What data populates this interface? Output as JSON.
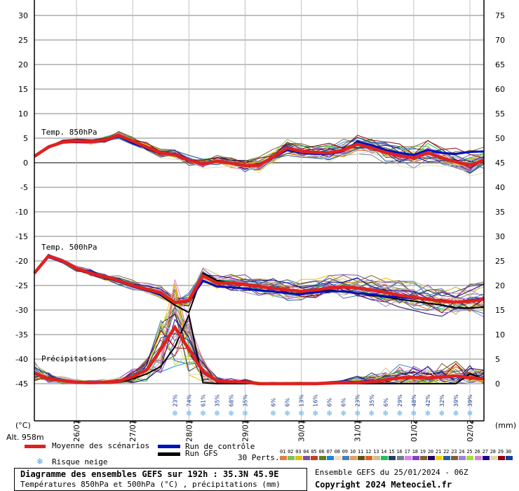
{
  "chart_data": {
    "type": "line",
    "title": "Diagramme des ensembles GEFS sur 192h : 35.3N 45.9E",
    "subtitle": "Températures 850hPa et 500hPa (°C) , précipitations (mm)",
    "run_info": "Ensemble GEFS du 25/01/2024 - 06Z",
    "copyright": "Copyright 2024 Meteociel.fr",
    "altitude": "Alt. 958m",
    "y_left_unit": "(°C)",
    "y_right_unit": "(mm)",
    "y_left_ticks": [
      30,
      25,
      20,
      15,
      10,
      5,
      0,
      -5,
      -10,
      -15,
      -20,
      -25,
      -30,
      -35,
      -40,
      -45
    ],
    "y_left_range": [
      -45,
      30
    ],
    "y_right_ticks": [
      75,
      70,
      65,
      60,
      55,
      50,
      45,
      40,
      35,
      30,
      25,
      20,
      15,
      10,
      5,
      0
    ],
    "y_right_range": [
      0,
      75
    ],
    "x_date_labels": [
      "26/01",
      "27/01",
      "28/01",
      "29/01",
      "30/01",
      "31/01",
      "01/02",
      "02/02"
    ],
    "x_step_hours": 6,
    "x_start": "25/01 06Z",
    "grid": true,
    "panel_labels": [
      "Temp. 850hPa",
      "Temp. 500hPa",
      "Précipitations"
    ],
    "t850_mean": [
      1.3,
      3.2,
      4.2,
      4.4,
      4.3,
      4.6,
      5.6,
      4.4,
      3.2,
      2.0,
      1.6,
      0.5,
      -0.3,
      0.3,
      -0.1,
      -0.6,
      -0.5,
      1.2,
      3.0,
      2.3,
      2.1,
      2.0,
      2.6,
      3.8,
      3.0,
      2.1,
      1.4,
      1.0,
      2.0,
      1.0,
      0.2,
      -0.5,
      0.5,
      1.8,
      0.5,
      -0.8,
      -1.5,
      -0.2,
      -1.0,
      -1.8,
      -2.2,
      -2.5,
      -2.2,
      -2.0,
      -2.3,
      -2.8,
      -3.0,
      -3.2,
      -3.4
    ],
    "t850_control": [
      1.3,
      3.2,
      4.3,
      4.2,
      4.2,
      4.4,
      5.4,
      4.0,
      3.0,
      2.0,
      1.8,
      0.6,
      -0.3,
      0.4,
      0.0,
      -0.5,
      -0.6,
      1.0,
      2.6,
      2.0,
      1.8,
      1.8,
      2.4,
      4.2,
      3.6,
      2.6,
      2.0,
      1.6,
      2.6,
      2.0,
      1.8,
      2.2,
      2.3,
      1.6,
      0.8,
      -0.4,
      -1.0,
      -0.6,
      -1.2,
      -1.6,
      -2.0,
      -2.2,
      -2.0,
      -1.8,
      -2.0,
      -2.4,
      -2.6,
      -2.8,
      -3.0
    ],
    "t500_mean": [
      -22.5,
      -19.0,
      -20.0,
      -21.5,
      -22.5,
      -23.2,
      -24.0,
      -25.0,
      -25.8,
      -26.5,
      -28.5,
      -28.0,
      -23.0,
      -24.5,
      -24.5,
      -24.8,
      -25.2,
      -25.6,
      -25.9,
      -26.2,
      -25.9,
      -25.5,
      -25.3,
      -25.5,
      -25.9,
      -26.4,
      -27.0,
      -27.4,
      -27.8,
      -28.2,
      -28.4,
      -28.2,
      -27.8,
      -27.7,
      -27.6,
      -27.5,
      -27.4,
      -27.3,
      -27.3,
      -27.2,
      -27.2,
      -27.1,
      -27.0,
      -27.0,
      -27.0,
      -27.0,
      -27.0,
      -27.0,
      -27.0
    ],
    "t500_control": [
      -22.5,
      -19.2,
      -20.2,
      -21.6,
      -22.6,
      -23.4,
      -24.2,
      -25.2,
      -26.0,
      -26.8,
      -28.5,
      -28.2,
      -24.0,
      -25.2,
      -25.4,
      -25.6,
      -26.0,
      -26.2,
      -26.6,
      -26.8,
      -26.4,
      -26.2,
      -26.2,
      -26.6,
      -26.8,
      -27.2,
      -27.4,
      -27.6,
      -27.8,
      -28.0,
      -28.4,
      -28.0,
      -27.6,
      -28.0,
      -28.4,
      -28.6,
      -28.6,
      -28.8,
      -28.8,
      -29.0,
      -29.0,
      -29.0,
      -29.0,
      -29.0,
      -29.0,
      -29.0,
      -29.0,
      -29.0,
      -29.0
    ],
    "t500_gfs": [
      -22.5,
      -19.2,
      -20.0,
      -21.4,
      -22.4,
      -23.0,
      -24.0,
      -25.2,
      -25.8,
      -27.0,
      -29.0,
      -30.5,
      -22.5,
      -24.0,
      -24.5,
      -24.6,
      -25.0,
      -25.6,
      -26.0,
      -26.4,
      -26.2,
      -26.0,
      -26.2,
      -26.6,
      -27.0,
      -27.4,
      -27.8,
      -28.2,
      -28.6,
      -29.0,
      -29.5,
      -29.6,
      -29.4,
      -29.2,
      -29.4,
      -29.6,
      -29.8,
      -30.0,
      -30.0,
      -30.0,
      -30.0,
      -30.0,
      -30.0,
      -30.0,
      -30.0,
      -30.0,
      -30.0,
      -30.0,
      -30.0
    ],
    "precip_mean_mm": [
      2.2,
      1.0,
      0.6,
      0.3,
      0.2,
      0.3,
      0.5,
      1.4,
      2.8,
      7.0,
      11.5,
      7.0,
      2.5,
      0.6,
      0.4,
      0.3,
      0.0,
      0.0,
      0.0,
      0.0,
      0.0,
      0.1,
      0.2,
      0.2,
      0.4,
      0.8,
      1.2,
      1.3,
      1.2,
      1.4,
      1.6,
      1.2,
      1.0,
      0.9,
      0.7,
      0.2,
      0.0,
      0.0,
      0.0,
      0.0,
      0.0,
      0.0,
      0.0,
      0.0,
      0.0,
      0.0,
      0.0,
      0.0,
      0.0
    ],
    "precip_gfs_mm": [
      2.0,
      0.8,
      0.5,
      0.3,
      0.2,
      0.2,
      0.3,
      1.0,
      2.0,
      3.5,
      7.5,
      14.0,
      0.2,
      0.0,
      0.0,
      0.0,
      0.0,
      0.0,
      0.0,
      0.0,
      0.0,
      0.0,
      0.0,
      0.0,
      0.0,
      0.0,
      0.0,
      0.0,
      0.0,
      0.0,
      0.0,
      2.0,
      1.0,
      4.5,
      2.0,
      0.0,
      0.0,
      0.0,
      0.0,
      0.0,
      0.0,
      0.0,
      0.0,
      0.0,
      0.0,
      0.0,
      0.0,
      0.0,
      0.0
    ],
    "snow_risk": [
      {
        "step": 10,
        "pct": "23%"
      },
      {
        "step": 11,
        "pct": "74%"
      },
      {
        "step": 12,
        "pct": "61%"
      },
      {
        "step": 13,
        "pct": "35%"
      },
      {
        "step": 14,
        "pct": "68%"
      },
      {
        "step": 15,
        "pct": "35%"
      },
      {
        "step": 17,
        "pct": "6%"
      },
      {
        "step": 18,
        "pct": "6%"
      },
      {
        "step": 19,
        "pct": "13%"
      },
      {
        "step": 20,
        "pct": "16%"
      },
      {
        "step": 21,
        "pct": "6%"
      },
      {
        "step": 22,
        "pct": "6%"
      },
      {
        "step": 23,
        "pct": "23%"
      },
      {
        "step": 24,
        "pct": "35%"
      },
      {
        "step": 25,
        "pct": "6%"
      },
      {
        "step": 26,
        "pct": "29%"
      },
      {
        "step": 27,
        "pct": "48%"
      },
      {
        "step": 28,
        "pct": "42%"
      },
      {
        "step": 29,
        "pct": "32%"
      },
      {
        "step": 30,
        "pct": "39%"
      },
      {
        "step": 31,
        "pct": "39%"
      }
    ],
    "member_colors": [
      "#e08040",
      "#80c060",
      "#e0c000",
      "#8050a0",
      "#c04020",
      "#608020",
      "#2080e0",
      "#f0e0c0",
      "#4080c0",
      "#e0a060",
      "#605020",
      "#e06020",
      "#d0c090",
      "#20c060",
      "#204060",
      "#708090",
      "#e080f0",
      "#8040c0",
      "#806030",
      "#200060",
      "#f0d000",
      "#2060a0",
      "#806030",
      "#a080e0",
      "#a0e040",
      "#e080d0",
      "#200090",
      "#e0d8b0",
      "#900010",
      "#1040a0"
    ]
  },
  "legend": {
    "mean_label": "Moyenne des scénarios",
    "mean_color": "#e02020",
    "control_label": "Run de contrôle",
    "control_color": "#0010c0",
    "gfs_label": "Run GFS",
    "gfs_color": "#000000",
    "snow_label": "Risque neige",
    "perts_label": "30 Perts.",
    "pert_numbers": [
      "01",
      "02",
      "03",
      "04",
      "05",
      "06",
      "07",
      "08",
      "09",
      "10",
      "11",
      "12",
      "13",
      "14",
      "15",
      "16",
      "17",
      "18",
      "19",
      "20",
      "21",
      "22",
      "23",
      "24",
      "25",
      "26",
      "27",
      "28",
      "29",
      "30"
    ]
  },
  "footer": {
    "title": "Diagramme des ensembles GEFS sur 192h : 35.3N 45.9E",
    "subtitle": "Températures 850hPa et 500hPa (°C) , précipitations (mm)",
    "run_info": "Ensemble GEFS du 25/01/2024 - 06Z",
    "copyright": "Copyright 2024 Meteociel.fr"
  }
}
